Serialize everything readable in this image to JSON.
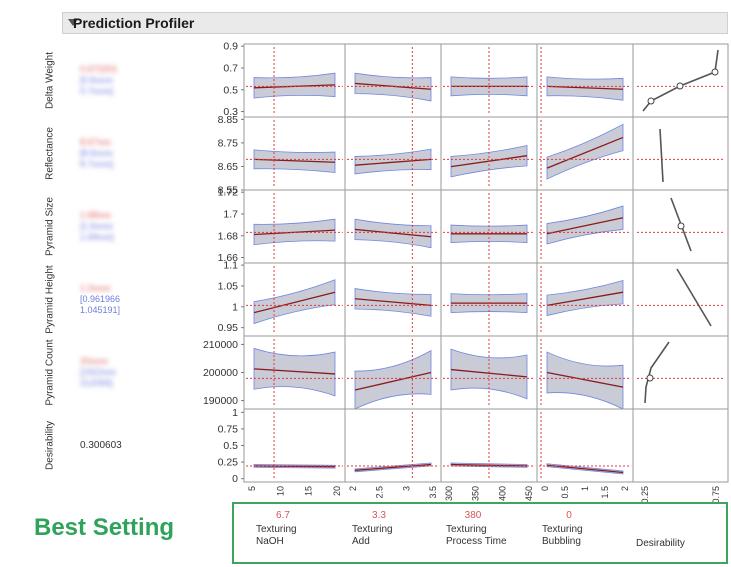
{
  "header": {
    "title": "Prediction Profiler"
  },
  "responses": [
    {
      "label": "Delta Weight",
      "value": "0.672201",
      "ci_low": "[0.6xxxx",
      "ci_high": "0.7xxxx]",
      "ticks": [
        "0.9",
        "0.7",
        "0.5",
        "0.3"
      ],
      "range": [
        0.25,
        0.92
      ]
    },
    {
      "label": "Reflectance",
      "value": "8.67xxx",
      "ci_low": "[8.6xxxx",
      "ci_high": "8.7xxxx]",
      "ticks": [
        "8.85",
        "8.75",
        "8.65",
        "8.55"
      ],
      "range": [
        8.55,
        8.86
      ]
    },
    {
      "label": "Pyramid Size",
      "value": "1.68xxx",
      "ci_low": "[1.6xxxx",
      "ci_high": "1.69xxx]",
      "ticks": [
        "1.72",
        "1.7",
        "1.68",
        "1.66"
      ],
      "range": [
        1.655,
        1.722
      ]
    },
    {
      "label": "Pyramid Height",
      "value": "1.0xxxx",
      "ci_low": "[0.961966",
      "ci_high": "1.045191]",
      "ticks": [
        "1.1",
        "1.05",
        "1",
        "0.95"
      ],
      "range": [
        0.93,
        1.105
      ]
    },
    {
      "label": "Pyramid Count",
      "value": "20xxxx",
      "ci_low": "[1922xxx",
      "ci_high": "212055]",
      "ticks": [
        "210000",
        "200000",
        "190000"
      ],
      "range": [
        187000,
        213000
      ]
    },
    {
      "label": "Desirability",
      "value": "0.300603",
      "ticks": [
        "1",
        "0.75",
        "0.5",
        "0.25",
        "0"
      ],
      "range": [
        -0.05,
        1.05
      ]
    }
  ],
  "factors": [
    {
      "name_line1": "Texturing",
      "name_line2": "NaOH",
      "current": "6.7",
      "ticks": [
        "5",
        "10",
        "15",
        "20"
      ]
    },
    {
      "name_line1": "Texturing",
      "name_line2": "Add",
      "current": "3.3",
      "ticks": [
        "2",
        "2.5",
        "3",
        "3.5"
      ]
    },
    {
      "name_line1": "Texturing",
      "name_line2": "Process Time",
      "current": "380",
      "ticks": [
        "300",
        "350",
        "400",
        "450"
      ]
    },
    {
      "name_line1": "Texturing",
      "name_line2": "Bubbling",
      "current": "0",
      "ticks": [
        "0",
        "0.5",
        "1",
        "1.5",
        "2"
      ]
    }
  ],
  "desirability_axis": {
    "label": "Desirability",
    "ticks": [
      "0.25",
      "0.75"
    ]
  },
  "best_setting": {
    "label": "Best Setting"
  },
  "colors": {
    "line": "#8b1a1a",
    "band": "#c9ccd6",
    "band_edge": "#6f86e0",
    "crosshair": "#e03a3a",
    "best": "#2fa35a"
  }
}
